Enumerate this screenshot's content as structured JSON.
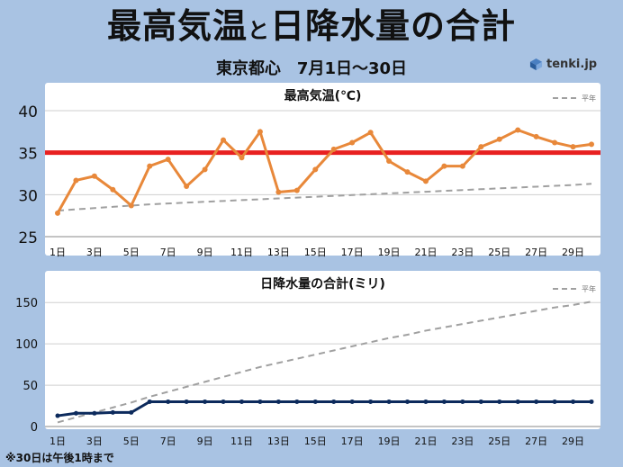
{
  "header": {
    "title_part1": "最高気温",
    "title_small": "と",
    "title_part2": "日降水量の合計",
    "subtitle": "東京都心　7月1日～30日",
    "logo_text": "tenki.jp",
    "logo_icon": "tenki-logo-icon"
  },
  "footnote": "※30日は午後1時まで",
  "colors": {
    "background": "#a9c3e3",
    "temp_line": "#e8883a",
    "precip_line": "#0c2a5c",
    "normal_line": "#a0a0a0",
    "threshold_line": "#e82020",
    "plot_bg": "#ffffff"
  },
  "chart_data": [
    {
      "type": "line",
      "title": "最高気温(℃)",
      "legend_label": "平年",
      "x": [
        "1日",
        "2日",
        "3日",
        "4日",
        "5日",
        "6日",
        "7日",
        "8日",
        "9日",
        "10日",
        "11日",
        "12日",
        "13日",
        "14日",
        "15日",
        "16日",
        "17日",
        "18日",
        "19日",
        "20日",
        "21日",
        "22日",
        "23日",
        "24日",
        "25日",
        "26日",
        "27日",
        "28日",
        "29日",
        "30日"
      ],
      "xticks": [
        "1日",
        "3日",
        "5日",
        "7日",
        "9日",
        "11日",
        "13日",
        "15日",
        "17日",
        "19日",
        "21日",
        "23日",
        "25日",
        "27日",
        "29日"
      ],
      "ylim": [
        25,
        40
      ],
      "yticks": [
        25,
        30,
        35,
        40
      ],
      "series": [
        {
          "values": [
            27.8,
            31.7,
            32.2,
            30.6,
            28.7,
            33.4,
            34.2,
            31.0,
            33.0,
            36.5,
            34.4,
            37.5,
            30.3,
            30.5,
            33.0,
            35.4,
            36.2,
            37.4,
            34.0,
            32.7,
            31.6,
            33.4,
            33.4,
            35.7,
            36.6,
            37.7,
            36.9,
            36.2,
            35.7,
            36.0
          ]
        },
        {
          "values": [
            28.1,
            28.25,
            28.4,
            28.55,
            28.7,
            28.85,
            28.95,
            29.05,
            29.15,
            29.25,
            29.35,
            29.45,
            29.55,
            29.65,
            29.75,
            29.85,
            29.95,
            30.05,
            30.15,
            30.25,
            30.35,
            30.45,
            30.55,
            30.65,
            30.75,
            30.85,
            30.95,
            31.05,
            31.15,
            31.3
          ]
        }
      ],
      "threshold": 35
    },
    {
      "type": "line",
      "title": "日降水量の合計(ミリ)",
      "legend_label": "平年",
      "x": [
        "1日",
        "2日",
        "3日",
        "4日",
        "5日",
        "6日",
        "7日",
        "8日",
        "9日",
        "10日",
        "11日",
        "12日",
        "13日",
        "14日",
        "15日",
        "16日",
        "17日",
        "18日",
        "19日",
        "20日",
        "21日",
        "22日",
        "23日",
        "24日",
        "25日",
        "26日",
        "27日",
        "28日",
        "29日",
        "30日"
      ],
      "xticks": [
        "1日",
        "3日",
        "5日",
        "7日",
        "9日",
        "11日",
        "13日",
        "15日",
        "17日",
        "19日",
        "21日",
        "23日",
        "25日",
        "27日",
        "29日"
      ],
      "ylim": [
        0,
        160
      ],
      "yticks": [
        0,
        50,
        100,
        150
      ],
      "series": [
        {
          "values": [
            13,
            16,
            16,
            17,
            17,
            30,
            30,
            30,
            30,
            30,
            30,
            30,
            30,
            30,
            30,
            30,
            30,
            30,
            30,
            30,
            30,
            30,
            30,
            30,
            30,
            30,
            30,
            30,
            30,
            30
          ]
        },
        {
          "values": [
            5,
            11,
            17,
            23,
            29,
            36,
            42,
            48,
            54,
            60,
            66,
            72,
            77,
            82,
            87,
            92,
            97,
            102,
            107,
            111,
            116,
            120,
            124,
            128,
            132,
            136,
            140,
            144,
            147,
            151
          ]
        }
      ]
    }
  ]
}
